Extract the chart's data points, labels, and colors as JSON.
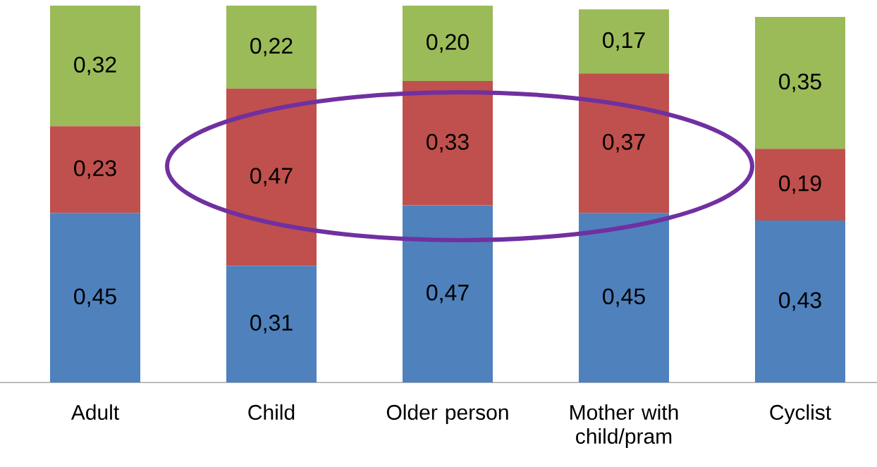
{
  "chart_data": {
    "type": "bar",
    "stacked": true,
    "categories": [
      "Adult",
      "Child",
      "Older person",
      "Mother with child/pram",
      "Cyclist"
    ],
    "series": [
      {
        "color": "#4f81bd",
        "values": [
          0.45,
          0.31,
          0.47,
          0.45,
          0.43
        ],
        "value_labels": [
          "0,45",
          "0,31",
          "0,47",
          "0,45",
          "0,43"
        ]
      },
      {
        "color": "#c0504d",
        "values": [
          0.23,
          0.47,
          0.33,
          0.37,
          0.19
        ],
        "value_labels": [
          "0,23",
          "0,47",
          "0,33",
          "0,37",
          "0,19"
        ]
      },
      {
        "color": "#9bbb59",
        "values": [
          0.32,
          0.22,
          0.2,
          0.17,
          0.35
        ],
        "value_labels": [
          "0,32",
          "0,22",
          "0,20",
          "0,17",
          "0,35"
        ]
      }
    ],
    "grid": false
  }
}
